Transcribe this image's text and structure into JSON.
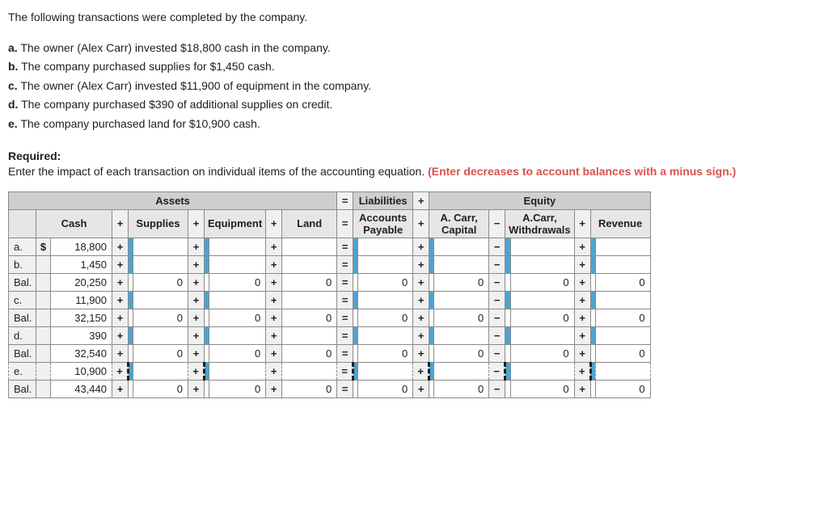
{
  "intro": "The following transactions were completed by the company.",
  "transactions": [
    {
      "letter": "a.",
      "text": "The owner (Alex Carr) invested $18,800 cash in the company."
    },
    {
      "letter": "b.",
      "text": "The company purchased supplies for $1,450 cash."
    },
    {
      "letter": "c.",
      "text": "The owner (Alex Carr) invested $11,900 of equipment in the company."
    },
    {
      "letter": "d.",
      "text": "The company purchased $390 of additional supplies on credit."
    },
    {
      "letter": "e.",
      "text": "The company purchased land for $10,900 cash."
    }
  ],
  "required_label": "Required:",
  "required_text": "Enter the impact of each transaction on individual items of the accounting equation. ",
  "required_red": "(Enter decreases to account balances with a minus sign.)",
  "groups": {
    "assets": "Assets",
    "liabilities": "Liabilities",
    "equity": "Equity"
  },
  "cols": {
    "cash": "Cash",
    "supplies": "Supplies",
    "equipment": "Equipment",
    "land": "Land",
    "ap": "Accounts Payable",
    "capital": "A. Carr, Capital",
    "withdrawals": "A.Carr, Withdrawals",
    "revenue": "Revenue"
  },
  "rows": [
    {
      "label": "a.",
      "dollar": "$",
      "cash": "18,800",
      "supplies": "",
      "equipment": "",
      "land": "",
      "ap": "",
      "capital": "",
      "withdrawals": "",
      "revenue": "",
      "ind": true
    },
    {
      "label": "b.",
      "dollar": "",
      "cash": "1,450",
      "supplies": "",
      "equipment": "",
      "land": "",
      "ap": "",
      "capital": "",
      "withdrawals": "",
      "revenue": "",
      "ind": true
    },
    {
      "label": "Bal.",
      "dollar": "",
      "cash": "20,250",
      "supplies": "0",
      "equipment": "0",
      "land": "0",
      "ap": "0",
      "capital": "0",
      "withdrawals": "0",
      "revenue": "0",
      "ind": false
    },
    {
      "label": "c.",
      "dollar": "",
      "cash": "11,900",
      "supplies": "",
      "equipment": "",
      "land": "",
      "ap": "",
      "capital": "",
      "withdrawals": "",
      "revenue": "",
      "ind": true
    },
    {
      "label": "Bal.",
      "dollar": "",
      "cash": "32,150",
      "supplies": "0",
      "equipment": "0",
      "land": "0",
      "ap": "0",
      "capital": "0",
      "withdrawals": "0",
      "revenue": "0",
      "ind": false
    },
    {
      "label": "d.",
      "dollar": "",
      "cash": "390",
      "supplies": "",
      "equipment": "",
      "land": "",
      "ap": "",
      "capital": "",
      "withdrawals": "",
      "revenue": "",
      "ind": true
    },
    {
      "label": "Bal.",
      "dollar": "",
      "cash": "32,540",
      "supplies": "0",
      "equipment": "0",
      "land": "0",
      "ap": "0",
      "capital": "0",
      "withdrawals": "0",
      "revenue": "0",
      "ind": false
    },
    {
      "label": "e.",
      "dollar": "",
      "cash": "10,900",
      "supplies": "",
      "equipment": "",
      "land": "",
      "ap": "",
      "capital": "",
      "withdrawals": "",
      "revenue": "",
      "ind": true,
      "dashed": true
    },
    {
      "label": "Bal.",
      "dollar": "",
      "cash": "43,440",
      "supplies": "0",
      "equipment": "0",
      "land": "0",
      "ap": "0",
      "capital": "0",
      "withdrawals": "0",
      "revenue": "0",
      "ind": false
    }
  ],
  "ops": {
    "plus": "+",
    "minus": "−",
    "eq": "="
  }
}
